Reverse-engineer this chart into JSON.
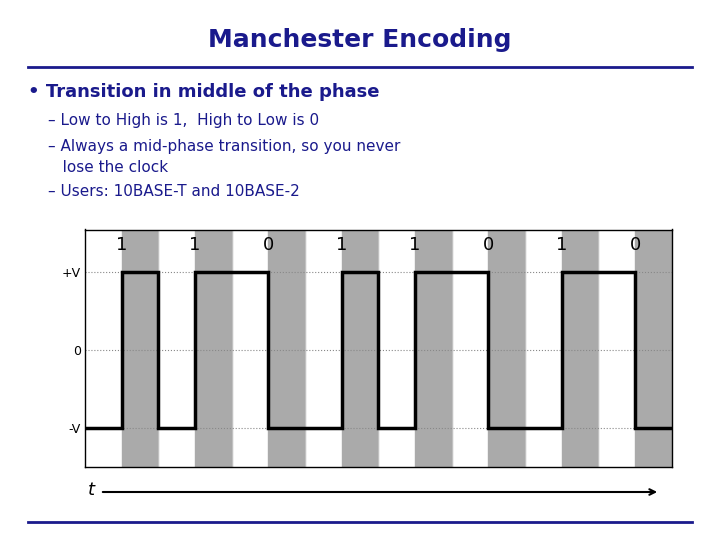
{
  "title": "Manchester Encoding",
  "title_color": "#1a1a8c",
  "title_fontsize": 18,
  "bg_color": "#ffffff",
  "bullet_text": "Transition in middle of the phase",
  "sub1": "– Low to High is 1,  High to Low is 0",
  "sub2_line1": "– Always a mid-phase transition, so you never",
  "sub2_line2": "   lose the clock",
  "sub3": "– Users: 10BASE-T and 10BASE-2",
  "text_color": "#1a1a8c",
  "bits": [
    1,
    1,
    0,
    1,
    1,
    0,
    1,
    0
  ],
  "gray_color": "#aaaaaa",
  "signal_color": "#000000",
  "signal_lw": 2.5,
  "plus_v": 1,
  "minus_v": -1,
  "ytick_labels": [
    "+V",
    "0",
    "-V"
  ],
  "ytick_values": [
    1,
    0,
    -1
  ],
  "xlabel": "t",
  "divider_color": "#1a1a8c",
  "divider_lw": 2.0,
  "bottom_line_color": "#1a1a8c"
}
